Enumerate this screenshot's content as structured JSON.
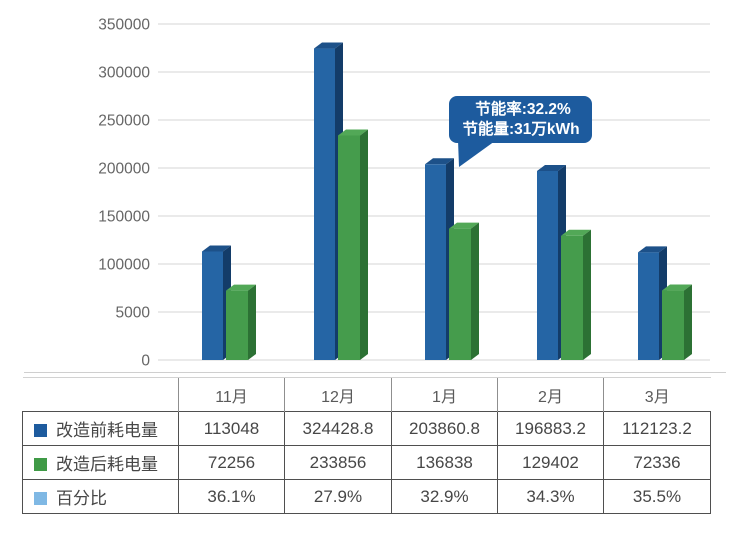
{
  "chart_data": {
    "type": "bar",
    "title": "",
    "categories": [
      "11月",
      "12月",
      "1月",
      "2月",
      "3月"
    ],
    "series": [
      {
        "name": "改造前耗电量",
        "color": "#2565a5",
        "color_top": "#1d5189",
        "color_side": "#133c69",
        "values": [
          113048,
          324428.8,
          203860.8,
          196883.2,
          112123.2
        ]
      },
      {
        "name": "改造后耗电量",
        "color": "#459c4c",
        "color_top": "#52a857",
        "color_side": "#2c7134",
        "values": [
          72256,
          233856,
          136838,
          129402,
          72336
        ]
      }
    ],
    "percent_series": {
      "name": "百分比",
      "color": "#7fb8e4",
      "values": [
        "36.1%",
        "27.9%",
        "32.9%",
        "34.3%",
        "35.5%"
      ]
    },
    "y_tick_labels": [
      "350000",
      "300000",
      "250000",
      "200000",
      "150000",
      "100000",
      "5000",
      "0"
    ],
    "ylim": [
      0,
      350000
    ],
    "grid": true,
    "gridline_color": "#d6d6d6",
    "tick_color": "#666666",
    "legend_position": "left column of table below chart",
    "callout": {
      "line1": "节能率:32.2%",
      "line2": "节能量:31万kWh",
      "color": "#1d5b9e",
      "text_color": "#ffffff",
      "points_to": "1月 改造前耗电量 bar"
    }
  },
  "table": {
    "corner_label": "",
    "column_headers": [
      "11月",
      "12月",
      "1月",
      "2月",
      "3月"
    ],
    "rows": [
      {
        "label": "改造前耗电量",
        "swatch_color": "#1d5b9e",
        "cells": [
          "113048",
          "324428.8",
          "203860.8",
          "196883.2",
          "112123.2"
        ]
      },
      {
        "label": "改造后耗电量",
        "swatch_color": "#3f9a46",
        "cells": [
          "72256",
          "233856",
          "136838",
          "129402",
          "72336"
        ]
      },
      {
        "label": "百分比",
        "swatch_color": "#7fb8e4",
        "cells": [
          "36.1%",
          "27.9%",
          "32.9%",
          "34.3%",
          "35.5%"
        ]
      }
    ]
  }
}
